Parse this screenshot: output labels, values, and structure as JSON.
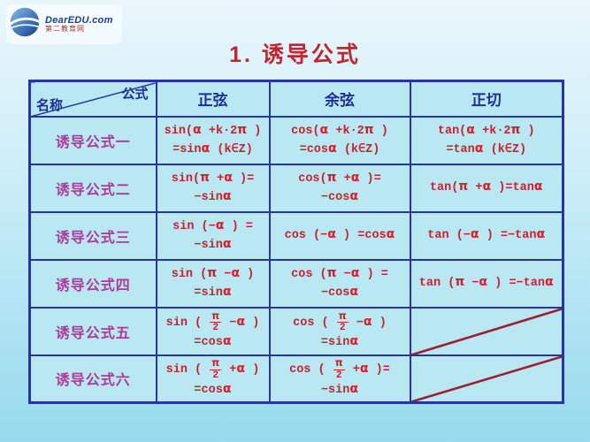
{
  "page": {
    "title": "1. 诱导公式",
    "logo": {
      "brand": "DearEDU.com",
      "sub": "第二教育网"
    }
  },
  "table": {
    "header": {
      "corner_top": "公式",
      "corner_bottom": "名称",
      "cols": [
        "正弦",
        "余弦",
        "正切"
      ]
    },
    "rows": [
      {
        "name": "诱导公式一",
        "sin": [
          "sin(α +k·2π )",
          "=sinα (k∈Z)"
        ],
        "cos": [
          "cos(α +k·2π )",
          "=cosα (k∈Z)"
        ],
        "tan": [
          "tan(α +k·2π )",
          "=tanα (k∈Z)"
        ],
        "tan_diagonal": false
      },
      {
        "name": "诱导公式二",
        "sin": [
          "sin(π +α )=",
          "−sinα"
        ],
        "cos": [
          "cos(π +α )=",
          "−cosα"
        ],
        "tan": [
          "tan(π +α )=tanα"
        ],
        "tan_diagonal": false
      },
      {
        "name": "诱导公式三",
        "sin": [
          "sin (−α ) =",
          "−sinα"
        ],
        "cos": [
          "cos (−α ) =cosα"
        ],
        "tan": [
          "tan (−α ) =−tanα"
        ],
        "tan_diagonal": false
      },
      {
        "name": "诱导公式四",
        "sin": [
          "sin (π −α )",
          "=sinα"
        ],
        "cos": [
          "cos (π −α ) =",
          "−cosα"
        ],
        "tan": [
          "tan (π −α ) =−tanα"
        ],
        "tan_diagonal": false
      },
      {
        "name": "诱导公式五",
        "sin": [
          "sin ( π/2 −α )",
          "=cosα"
        ],
        "cos": [
          "cos ( π/2 −α )",
          "=sinα"
        ],
        "tan": [],
        "tan_diagonal": true
      },
      {
        "name": "诱导公式六",
        "sin": [
          "sin ( π/2 +α )",
          "=cosα"
        ],
        "cos": [
          "cos ( π/2 +α )=",
          "−sinα"
        ],
        "tan": [],
        "tan_diagonal": true
      }
    ]
  },
  "colors": {
    "bg_top": "#eaf6fc",
    "bg_bottom": "#97daee",
    "cell_bg": "#b9e8f3",
    "border_blue": "#2735a0",
    "header_blue": "#1d2e9c",
    "label_magenta": "#b03898",
    "formula_red": "#c32430",
    "alpha_red": "#e01c28",
    "title_red": "#c2252e",
    "diag_red": "#9b1b30",
    "brand_blue": "#1a3f8f",
    "brand_sub_red": "#b03030"
  }
}
